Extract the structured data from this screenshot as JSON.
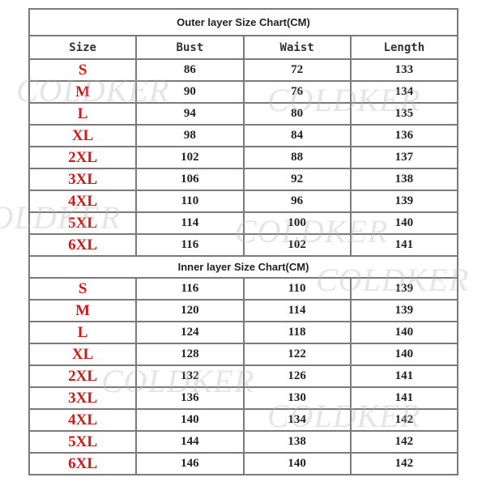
{
  "outer": {
    "title": "Outer layer Size Chart(CM)",
    "headers": [
      "Size",
      "Bust",
      "Waist",
      "Length"
    ],
    "rows": [
      [
        "S",
        "86",
        "72",
        "133"
      ],
      [
        "M",
        "90",
        "76",
        "134"
      ],
      [
        "L",
        "94",
        "80",
        "135"
      ],
      [
        "XL",
        "98",
        "84",
        "136"
      ],
      [
        "2XL",
        "102",
        "88",
        "137"
      ],
      [
        "3XL",
        "106",
        "92",
        "138"
      ],
      [
        "4XL",
        "110",
        "96",
        "139"
      ],
      [
        "5XL",
        "114",
        "100",
        "140"
      ],
      [
        "6XL",
        "116",
        "102",
        "141"
      ]
    ]
  },
  "inner": {
    "title": "Inner layer Size Chart(CM)",
    "rows": [
      [
        "S",
        "116",
        "110",
        "139"
      ],
      [
        "M",
        "120",
        "114",
        "139"
      ],
      [
        "L",
        "124",
        "118",
        "140"
      ],
      [
        "XL",
        "128",
        "122",
        "140"
      ],
      [
        "2XL",
        "132",
        "126",
        "141"
      ],
      [
        "3XL",
        "136",
        "130",
        "141"
      ],
      [
        "4XL",
        "140",
        "134",
        "142"
      ],
      [
        "5XL",
        "144",
        "138",
        "142"
      ],
      [
        "6XL",
        "146",
        "140",
        "142"
      ]
    ]
  },
  "watermark": "COLDKER",
  "colors": {
    "size_label": "#d01818",
    "border": "#7a7a7a"
  }
}
